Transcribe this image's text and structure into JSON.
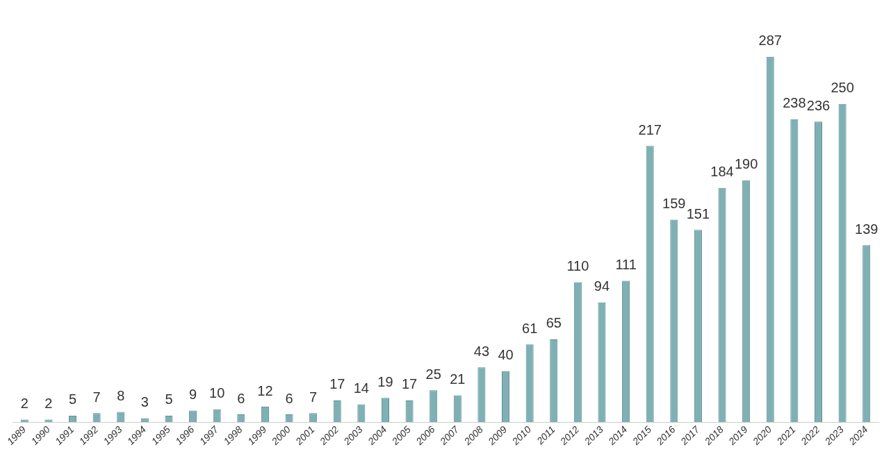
{
  "chart_data": {
    "type": "bar",
    "categories": [
      "1989",
      "1990",
      "1991",
      "1992",
      "1993",
      "1994",
      "1995",
      "1996",
      "1997",
      "1998",
      "1999",
      "2000",
      "2001",
      "2002",
      "2003",
      "2004",
      "2005",
      "2006",
      "2007",
      "2008",
      "2009",
      "2010",
      "2011",
      "2012",
      "2013",
      "2014",
      "2015",
      "2016",
      "2017",
      "2018",
      "2019",
      "2020",
      "2021",
      "2022",
      "2023",
      "2024"
    ],
    "values": [
      2,
      2,
      5,
      7,
      8,
      3,
      5,
      9,
      10,
      6,
      12,
      6,
      7,
      17,
      14,
      19,
      17,
      25,
      21,
      43,
      40,
      61,
      65,
      110,
      94,
      111,
      217,
      159,
      151,
      184,
      190,
      287,
      238,
      236,
      250,
      139
    ],
    "color": "#7fb0b3",
    "data_labels": true,
    "grid": false,
    "legend": false
  }
}
